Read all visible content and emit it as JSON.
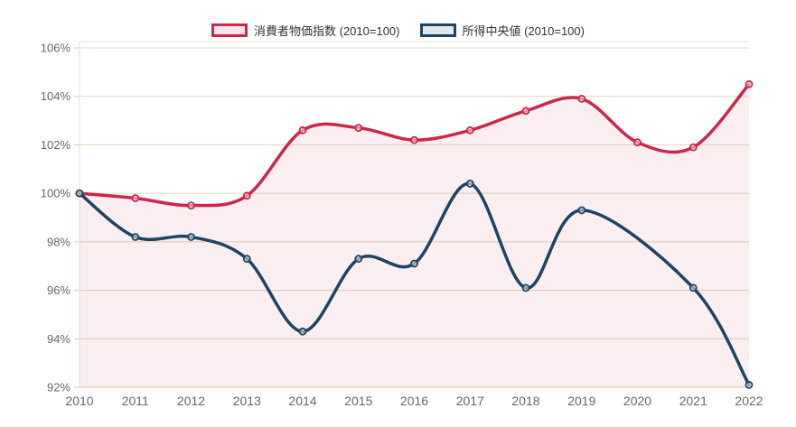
{
  "chart_data": {
    "type": "line",
    "x": [
      2010,
      2011,
      2012,
      2013,
      2014,
      2015,
      2016,
      2017,
      2018,
      2019,
      2020,
      2021,
      2022
    ],
    "x_tick_labels": [
      "2010",
      "2011",
      "2012",
      "2013",
      "2014",
      "2015",
      "2016",
      "2017",
      "2018",
      "2019",
      "2020",
      "2021",
      "2022"
    ],
    "y_tick_labels": [
      "92%",
      "94%",
      "96%",
      "98%",
      "100%",
      "102%",
      "104%",
      "106%"
    ],
    "ylim": [
      92,
      106
    ],
    "y_tick_step": 2,
    "y_tick_suffix": "%",
    "grid": true,
    "legend_position": "top",
    "series": [
      {
        "id": "cpi",
        "name": "消費者物価指数 (2010=100)",
        "color": "#cb2749",
        "area_fill": "rgba(203, 39, 73, 0.08)",
        "legend_fill": "#f8e4e9",
        "values": [
          100.0,
          99.8,
          99.5,
          99.9,
          102.6,
          102.7,
          102.2,
          102.6,
          103.4,
          103.9,
          102.1,
          101.9,
          104.5
        ]
      },
      {
        "id": "median-income",
        "name": "所得中央値 (2010=100)",
        "color": "#1e4465",
        "area_fill": null,
        "legend_fill": "#dfe9f0",
        "values": [
          100.0,
          98.2,
          98.2,
          97.3,
          94.3,
          97.3,
          97.1,
          100.4,
          96.1,
          99.3,
          null,
          96.1,
          92.1
        ]
      }
    ],
    "colors": {
      "grid": "#ded6bd",
      "axis": "#d6cdb4",
      "plot_border": "#e6e2d4",
      "tick_label": "#666666",
      "legend_text": "#333333",
      "background": "#ffffff"
    }
  }
}
